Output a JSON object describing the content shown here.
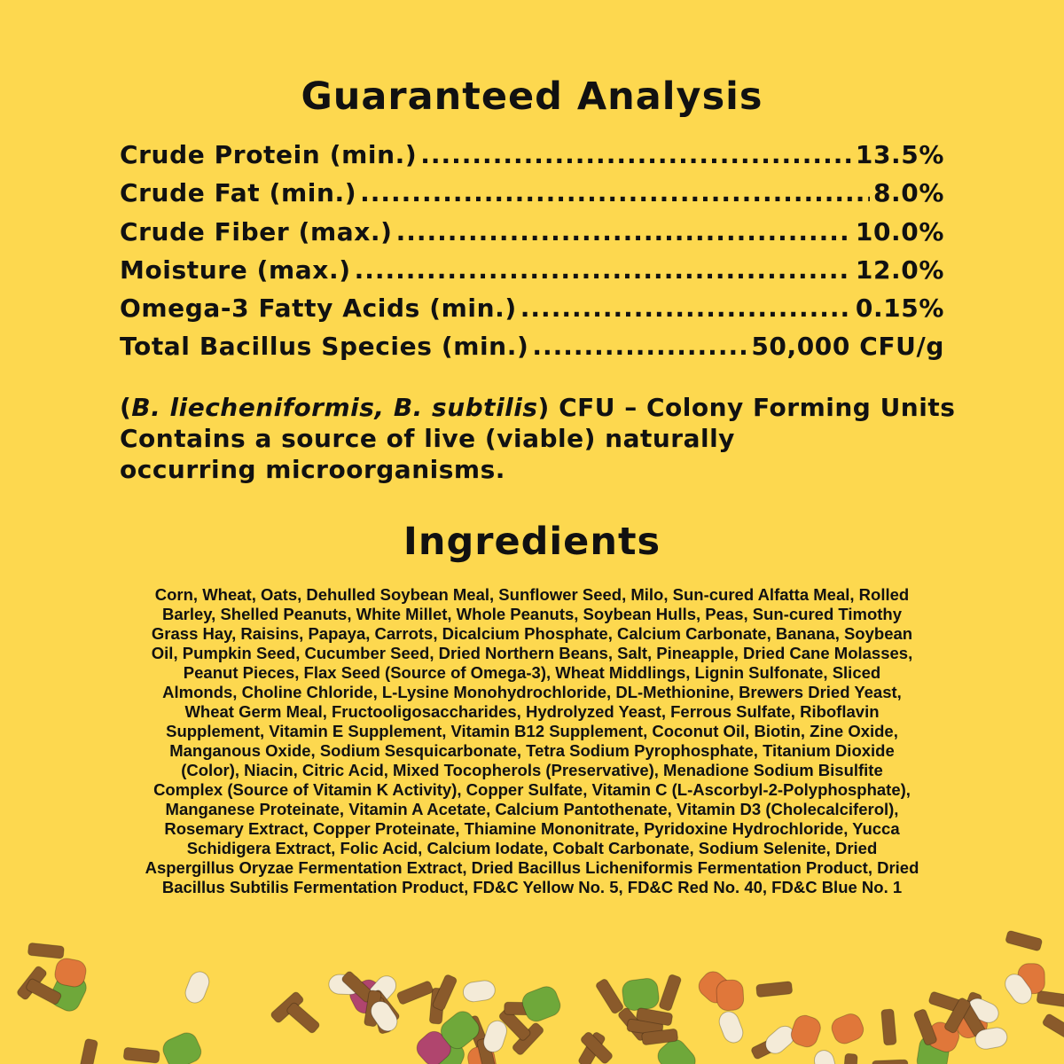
{
  "analysis": {
    "title": "Guaranteed Analysis",
    "rows": [
      {
        "label": "Crude Protein (min.)",
        "value": "13.5%"
      },
      {
        "label": "Crude Fat (min.)",
        "value": "8.0%"
      },
      {
        "label": "Crude Fiber (max.)",
        "value": "10.0%"
      },
      {
        "label": "Moisture (max.)",
        "value": "12.0%"
      },
      {
        "label": "Omega-3 Fatty Acids (min.)",
        "value": "0.15%"
      },
      {
        "label": "Total Bacillus Species (min.)",
        "value": "50,000 CFU/g"
      }
    ],
    "note": {
      "open_paren": "(",
      "species": "B. liecheniformis, B. subtilis",
      "line1_rest": ") CFU – Colony Forming Units",
      "line2": "Contains a source of live (viable) naturally",
      "line3": "occurring microorganisms."
    }
  },
  "ingredients": {
    "title": "Ingredients",
    "lines": [
      "Corn, Wheat, Oats, Dehulled Soybean Meal, Sunflower Seed, Milo, Sun-cured Alfatta Meal, Rolled",
      "Barley, Shelled Peanuts, White Millet, Whole Peanuts, Soybean Hulls, Peas, Sun-cured Timothy",
      "Grass Hay, Raisins, Papaya, Carrots, Dicalcium Phosphate, Calcium Carbonate, Banana, Soybean",
      "Oil, Pumpkin Seed, Cucumber Seed, Dried Northern Beans, Salt, Pineapple, Dried Cane Molasses,",
      "Peanut Pieces, Flax Seed (Source of Omega-3), Wheat Middlings, Lignin Sulfonate, Sliced",
      "Almonds, Choline Chloride, L-Lysine Monohydrochloride, DL-Methionine, Brewers Dried Yeast,",
      "Wheat Germ Meal, Fructooligosaccharides, Hydrolyzed Yeast, Ferrous Sulfate, Riboflavin",
      "Supplement, Vitamin E Supplement, Vitamin B12 Supplement, Coconut Oil, Biotin, Zine Oxide,",
      "Manganous Oxide, Sodium Sesquicarbonate, Tetra Sodium Pyrophosphate, Titanium Dioxide",
      "(Color), Niacin, Citric Acid, Mixed Tocopherols (Preservative), Menadione Sodium Bisulfite",
      "Complex (Source of Vitamin K Activity), Copper Sulfate, Vitamin C (L-Ascorbyl-2-Polyphosphate),",
      "Manganese Proteinate, Vitamin A Acetate, Calcium Pantothenate, Vitamin D3 (Cholecalciferol),",
      "Rosemary Extract, Copper Proteinate, Thiamine Mononitrate, Pyridoxine Hydrochloride, Yucca",
      "Schidigera Extract, Folic Acid, Calcium Iodate, Cobalt Carbonate, Sodium Selenite, Dried",
      "Aspergillus Oryzae Fermentation Extract, Dried Bacillus Licheniformis Fermentation Product, Dried",
      "Bacillus Subtilis Fermentation Product, FD&C Yellow No. 5, FD&C Red No. 40, FD&C Blue No. 1"
    ]
  },
  "colors": {
    "background": "#FDD84F",
    "text": "#111111",
    "pellet": "#8A5A2B",
    "orange": "#E0773A",
    "green": "#6FA83A",
    "purple": "#B0456E",
    "seed": "#F4EBD8"
  }
}
